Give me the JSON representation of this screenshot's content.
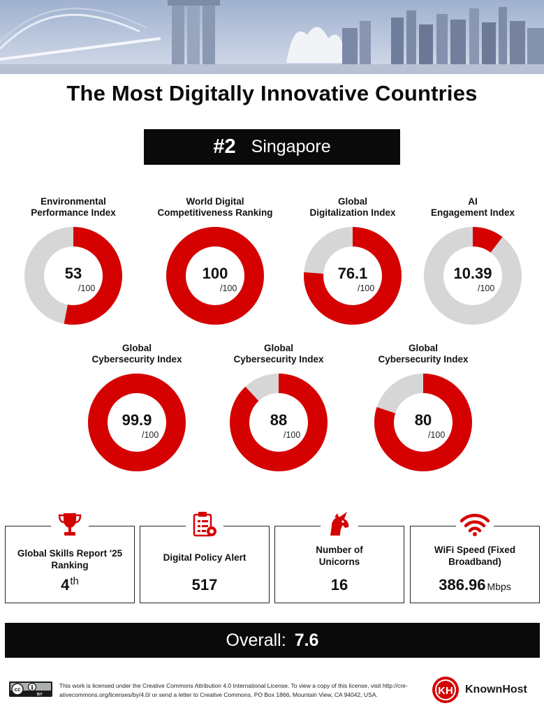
{
  "title": "The Most Digitally Innovative Countries",
  "rank": {
    "number": "#2",
    "country": "Singapore"
  },
  "colors": {
    "accent": "#d50000",
    "accent_dark": "#b30000",
    "track": "#d6d6d6",
    "dark": "#0a0a0a"
  },
  "chart_data": {
    "type": "donut",
    "max": 100,
    "max_label": "/100",
    "items": [
      {
        "label_line1": "Environmental",
        "label_line2": "Performance Index",
        "value": 53,
        "display": "53"
      },
      {
        "label_line1": "World Digital",
        "label_line2": "Competitiveness Ranking",
        "value": 100,
        "display": "100"
      },
      {
        "label_line1": "Global",
        "label_line2": "Digitalization Index",
        "value": 76.1,
        "display": "76.1"
      },
      {
        "label_line1": "AI",
        "label_line2": "Engagement Index",
        "value": 10.39,
        "display": "10.39"
      },
      {
        "label_line1": "Global",
        "label_line2": "Cybersecurity Index",
        "value": 99.9,
        "display": "99.9"
      },
      {
        "label_line1": "Global",
        "label_line2": "Cybersecurity Index",
        "value": 88,
        "display": "88"
      },
      {
        "label_line1": "Global",
        "label_line2": "Cybersecurity Index",
        "value": 80,
        "display": "80"
      }
    ]
  },
  "stats": [
    {
      "icon": "trophy-icon",
      "label_line1": "Global Skills Report '25",
      "label_line2": "Ranking",
      "value": "4",
      "suffix": "th",
      "unit": ""
    },
    {
      "icon": "policy-document-icon",
      "label_line1": "Digital Policy Alert",
      "label_line2": "",
      "value": "517",
      "suffix": "",
      "unit": ""
    },
    {
      "icon": "unicorn-icon",
      "label_line1": "Number of",
      "label_line2": "Unicorns",
      "value": "16",
      "suffix": "",
      "unit": ""
    },
    {
      "icon": "wifi-icon",
      "label_line1": "WiFi Speed (Fixed",
      "label_line2": "Broadband)",
      "value": "386.96",
      "suffix": "",
      "unit": "Mbps"
    }
  ],
  "overall": {
    "label": "Overall:",
    "value": "7.6"
  },
  "footer": {
    "license_line1": "This work is licensed under the Creative Commons Attribution 4.0 International License. To view a copy of this license, visit http://cre-",
    "license_line2": "ativecommons.org/licenses/by/4.0/ or send a letter to Creative Commons, PO Box 1866, Mountain View, CA 94042, USA.",
    "cc_badge_text": "BY",
    "brand": "KnownHost"
  }
}
